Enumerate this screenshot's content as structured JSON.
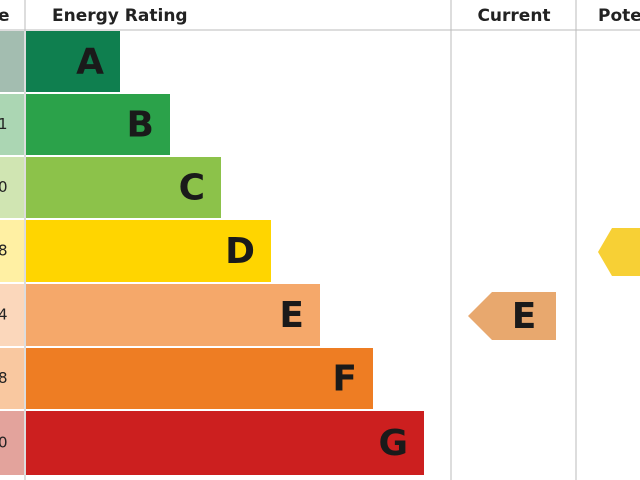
{
  "header": {
    "score": "e",
    "rating": "Energy Rating",
    "current": "Current",
    "potential": "Pote"
  },
  "rows": [
    {
      "band": "A"
    },
    {
      "score": "1",
      "band": "B"
    },
    {
      "score": "0",
      "band": "C"
    },
    {
      "score": "8",
      "band": "D"
    },
    {
      "score": "4",
      "band": "E"
    },
    {
      "score": "8",
      "band": "F"
    },
    {
      "score": "0",
      "band": "G"
    }
  ],
  "current": "E"
}
